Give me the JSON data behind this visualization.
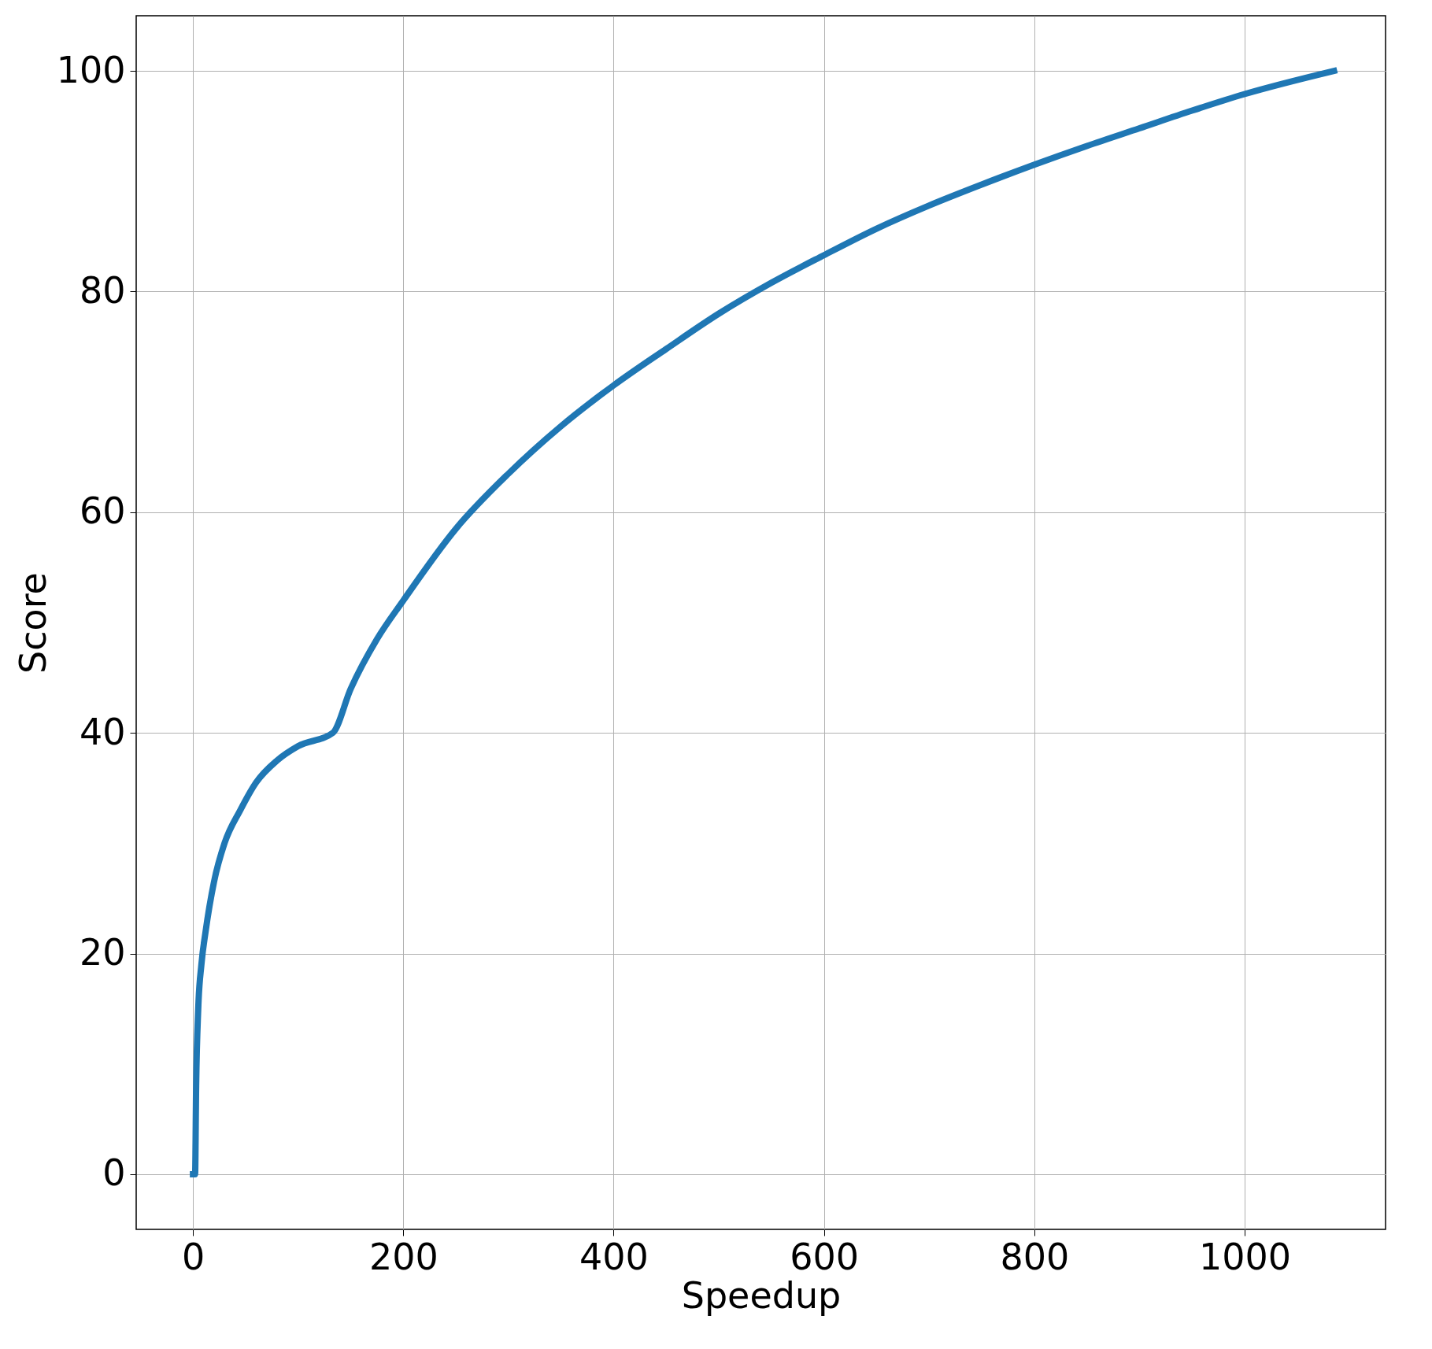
{
  "chart_data": {
    "type": "line",
    "xlabel": "Speedup",
    "ylabel": "Score",
    "xlim": [
      -54,
      1134
    ],
    "ylim": [
      -5,
      105
    ],
    "xticks": [
      0,
      200,
      400,
      600,
      800,
      1000
    ],
    "yticks": [
      0,
      20,
      40,
      60,
      80,
      100
    ],
    "grid": true,
    "line_style": "solid",
    "marker": "none",
    "x": [
      0,
      2,
      3,
      5,
      8,
      12,
      20,
      30,
      45,
      60,
      80,
      100,
      133,
      150,
      175,
      200,
      250,
      300,
      350,
      400,
      450,
      500,
      550,
      600,
      650,
      700,
      750,
      800,
      850,
      900,
      950,
      1000,
      1085
    ],
    "series": [
      {
        "color": "#1f77b4",
        "values": [
          0,
          0,
          8,
          15,
          19,
          22,
          26.5,
          30,
          33,
          35.5,
          37.5,
          38.8,
          40,
          44,
          48.5,
          52,
          58.5,
          63.5,
          67.8,
          71.5,
          74.8,
          78,
          80.8,
          83.3,
          85.7,
          87.8,
          89.7,
          91.5,
          93.2,
          94.8,
          96.4,
          97.9,
          100
        ]
      }
    ]
  }
}
